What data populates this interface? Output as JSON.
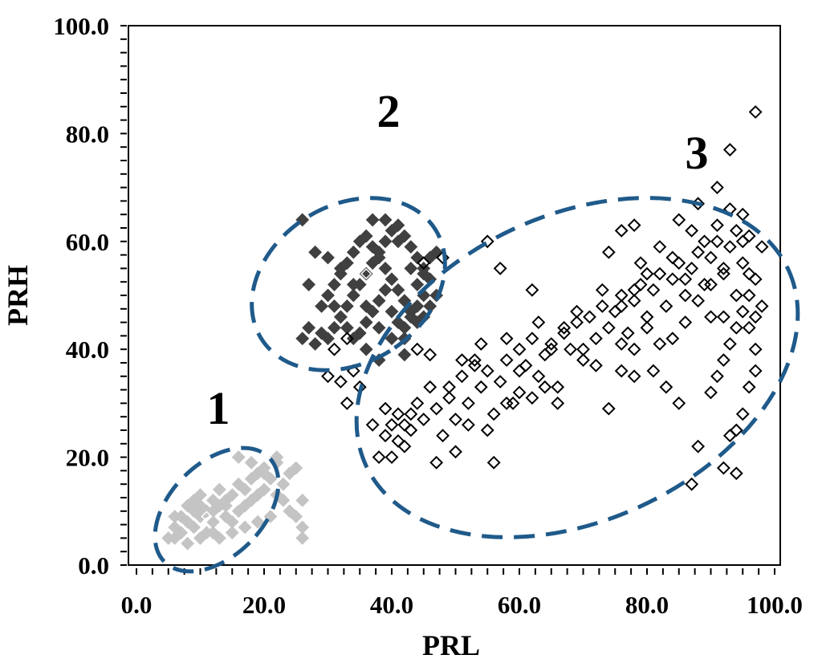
{
  "chart_data": {
    "type": "scatter",
    "title": "",
    "xlabel": "PRL",
    "ylabel": "PRH",
    "xlim": [
      0,
      100
    ],
    "ylim": [
      0,
      100
    ],
    "x_ticks": [
      "0.0",
      "20.0",
      "40.0",
      "60.0",
      "80.0",
      "100.0"
    ],
    "y_ticks": [
      "0.0",
      "20.0",
      "40.0",
      "60.0",
      "80.0",
      "100.0"
    ],
    "grid": false,
    "legend": "none",
    "marker": "diamond",
    "clusters": [
      {
        "label": "1",
        "color": "#c4c4c4",
        "centroid": [
          11,
          9
        ],
        "points": [
          [
            5,
            5
          ],
          [
            6,
            7
          ],
          [
            7,
            9
          ],
          [
            8,
            11
          ],
          [
            9,
            12
          ],
          [
            10,
            13
          ],
          [
            11,
            10
          ],
          [
            12,
            12
          ],
          [
            13,
            14
          ],
          [
            14,
            11
          ],
          [
            15,
            13
          ],
          [
            16,
            15
          ],
          [
            17,
            14
          ],
          [
            18,
            16
          ],
          [
            19,
            17
          ],
          [
            20,
            18
          ],
          [
            21,
            16
          ],
          [
            22,
            19
          ],
          [
            23,
            15
          ],
          [
            24,
            17
          ],
          [
            25,
            18
          ],
          [
            26,
            12
          ],
          [
            24,
            10
          ],
          [
            21,
            9
          ],
          [
            19,
            8
          ],
          [
            17,
            7
          ],
          [
            15,
            6
          ],
          [
            13,
            5
          ],
          [
            11,
            6
          ],
          [
            9,
            7
          ],
          [
            7,
            6
          ],
          [
            6,
            5
          ],
          [
            8,
            4
          ],
          [
            10,
            5
          ],
          [
            12,
            8
          ],
          [
            14,
            9
          ],
          [
            16,
            10
          ],
          [
            18,
            12
          ],
          [
            20,
            14
          ],
          [
            22,
            13
          ],
          [
            23,
            12
          ],
          [
            25,
            9
          ],
          [
            26,
            7
          ],
          [
            26,
            5
          ],
          [
            16,
            20
          ],
          [
            18,
            19
          ],
          [
            20,
            17
          ],
          [
            22,
            20
          ],
          [
            8,
            8
          ],
          [
            10,
            9
          ],
          [
            12,
            10
          ],
          [
            14,
            12
          ],
          [
            10,
            11
          ],
          [
            12,
            6
          ],
          [
            6,
            9
          ],
          [
            9,
            10
          ],
          [
            15,
            8
          ],
          [
            17,
            11
          ],
          [
            19,
            13
          ],
          [
            13,
            11
          ]
        ]
      },
      {
        "label": "2",
        "color": "#404040",
        "centroid": [
          36,
          54
        ],
        "points": [
          [
            26,
            42
          ],
          [
            27,
            44
          ],
          [
            28,
            41
          ],
          [
            29,
            43
          ],
          [
            30,
            42
          ],
          [
            31,
            44
          ],
          [
            32,
            46
          ],
          [
            33,
            48
          ],
          [
            34,
            50
          ],
          [
            35,
            52
          ],
          [
            36,
            54
          ],
          [
            37,
            56
          ],
          [
            38,
            58
          ],
          [
            39,
            60
          ],
          [
            40,
            62
          ],
          [
            41,
            63
          ],
          [
            42,
            61
          ],
          [
            43,
            59
          ],
          [
            44,
            57
          ],
          [
            45,
            55
          ],
          [
            46,
            53
          ],
          [
            45,
            50
          ],
          [
            44,
            48
          ],
          [
            43,
            47
          ],
          [
            42,
            49
          ],
          [
            41,
            51
          ],
          [
            40,
            53
          ],
          [
            39,
            55
          ],
          [
            38,
            57
          ],
          [
            37,
            59
          ],
          [
            36,
            61
          ],
          [
            35,
            60
          ],
          [
            34,
            58
          ],
          [
            33,
            56
          ],
          [
            32,
            54
          ],
          [
            31,
            52
          ],
          [
            30,
            50
          ],
          [
            31,
            48
          ],
          [
            32,
            46
          ],
          [
            33,
            44
          ],
          [
            34,
            42
          ],
          [
            35,
            43
          ],
          [
            36,
            45
          ],
          [
            37,
            47
          ],
          [
            38,
            49
          ],
          [
            39,
            51
          ],
          [
            40,
            47
          ],
          [
            41,
            45
          ],
          [
            42,
            44
          ],
          [
            43,
            46
          ],
          [
            44,
            52
          ],
          [
            45,
            54
          ],
          [
            46,
            57
          ],
          [
            47,
            58
          ],
          [
            47,
            50
          ],
          [
            46,
            48
          ],
          [
            44,
            45
          ],
          [
            42,
            42
          ],
          [
            40,
            42
          ],
          [
            38,
            44
          ],
          [
            36,
            48
          ],
          [
            34,
            52
          ],
          [
            32,
            55
          ],
          [
            30,
            57
          ],
          [
            28,
            58
          ],
          [
            27,
            52
          ],
          [
            29,
            48
          ],
          [
            26,
            64
          ],
          [
            37,
            64
          ],
          [
            39,
            64
          ],
          [
            41,
            60
          ],
          [
            43,
            55
          ],
          [
            45,
            46
          ],
          [
            42,
            39
          ],
          [
            38,
            38
          ],
          [
            36,
            40
          ]
        ]
      },
      {
        "label": "3",
        "color": "#000000",
        "centroid": null,
        "points": [
          [
            38,
            20
          ],
          [
            39,
            24
          ],
          [
            40,
            26
          ],
          [
            41,
            28
          ],
          [
            42,
            22
          ],
          [
            43,
            25
          ],
          [
            44,
            30
          ],
          [
            45,
            27
          ],
          [
            46,
            33
          ],
          [
            47,
            29
          ],
          [
            48,
            24
          ],
          [
            49,
            31
          ],
          [
            50,
            27
          ],
          [
            51,
            35
          ],
          [
            52,
            30
          ],
          [
            53,
            37
          ],
          [
            54,
            33
          ],
          [
            55,
            36
          ],
          [
            56,
            28
          ],
          [
            57,
            34
          ],
          [
            58,
            38
          ],
          [
            59,
            30
          ],
          [
            60,
            40
          ],
          [
            61,
            37
          ],
          [
            62,
            42
          ],
          [
            63,
            35
          ],
          [
            64,
            39
          ],
          [
            65,
            41
          ],
          [
            66,
            33
          ],
          [
            67,
            43
          ],
          [
            68,
            40
          ],
          [
            69,
            45
          ],
          [
            70,
            38
          ],
          [
            71,
            46
          ],
          [
            72,
            42
          ],
          [
            73,
            48
          ],
          [
            74,
            44
          ],
          [
            75,
            47
          ],
          [
            76,
            50
          ],
          [
            77,
            43
          ],
          [
            78,
            49
          ],
          [
            79,
            52
          ],
          [
            80,
            46
          ],
          [
            81,
            51
          ],
          [
            82,
            54
          ],
          [
            83,
            48
          ],
          [
            84,
            53
          ],
          [
            85,
            56
          ],
          [
            86,
            50
          ],
          [
            87,
            55
          ],
          [
            88,
            58
          ],
          [
            89,
            52
          ],
          [
            90,
            57
          ],
          [
            91,
            60
          ],
          [
            92,
            54
          ],
          [
            93,
            59
          ],
          [
            94,
            62
          ],
          [
            95,
            56
          ],
          [
            96,
            61
          ],
          [
            97,
            53
          ],
          [
            96,
            50
          ],
          [
            95,
            47
          ],
          [
            94,
            44
          ],
          [
            93,
            41
          ],
          [
            92,
            38
          ],
          [
            91,
            35
          ],
          [
            90,
            32
          ],
          [
            96,
            44
          ],
          [
            97,
            40
          ],
          [
            97,
            36
          ],
          [
            96,
            33
          ],
          [
            95,
            28
          ],
          [
            94,
            25
          ],
          [
            93,
            24
          ],
          [
            92,
            18
          ],
          [
            94,
            17
          ],
          [
            88,
            22
          ],
          [
            87,
            15
          ],
          [
            85,
            30
          ],
          [
            83,
            33
          ],
          [
            81,
            36
          ],
          [
            78,
            35
          ],
          [
            76,
            36
          ],
          [
            74,
            29
          ],
          [
            72,
            37
          ],
          [
            70,
            40
          ],
          [
            66,
            30
          ],
          [
            63,
            45
          ],
          [
            60,
            36
          ],
          [
            58,
            42
          ],
          [
            56,
            19
          ],
          [
            55,
            25
          ],
          [
            52,
            26
          ],
          [
            50,
            21
          ],
          [
            47,
            19
          ],
          [
            46,
            39
          ],
          [
            44,
            40
          ],
          [
            45,
            56
          ],
          [
            48,
            57
          ],
          [
            55,
            60
          ],
          [
            57,
            55
          ],
          [
            62,
            51
          ],
          [
            73,
            51
          ],
          [
            76,
            62
          ],
          [
            78,
            63
          ],
          [
            79,
            56
          ],
          [
            74,
            58
          ],
          [
            88,
            67
          ],
          [
            91,
            70
          ],
          [
            93,
            77
          ],
          [
            97,
            84
          ],
          [
            95,
            65
          ],
          [
            98,
            59
          ],
          [
            98,
            48
          ],
          [
            97,
            46
          ],
          [
            90,
            46
          ],
          [
            86,
            45
          ],
          [
            84,
            42
          ],
          [
            82,
            41
          ],
          [
            80,
            44
          ],
          [
            78,
            40
          ],
          [
            76,
            41
          ],
          [
            69,
            47
          ],
          [
            67,
            44
          ],
          [
            65,
            40
          ],
          [
            64,
            33
          ],
          [
            62,
            31
          ],
          [
            60,
            32
          ],
          [
            58,
            30
          ],
          [
            54,
            41
          ],
          [
            53,
            38
          ],
          [
            51,
            38
          ],
          [
            49,
            33
          ],
          [
            43,
            28
          ],
          [
            42,
            26
          ],
          [
            41,
            23
          ],
          [
            40,
            20
          ],
          [
            39,
            29
          ],
          [
            37,
            26
          ],
          [
            35,
            33
          ],
          [
            33,
            30
          ],
          [
            32,
            34
          ],
          [
            30,
            35
          ],
          [
            34,
            36
          ],
          [
            31,
            40
          ],
          [
            33,
            42
          ],
          [
            85,
            64
          ],
          [
            87,
            62
          ],
          [
            89,
            60
          ],
          [
            91,
            63
          ],
          [
            93,
            66
          ],
          [
            95,
            60
          ],
          [
            92,
            55
          ],
          [
            90,
            52
          ],
          [
            88,
            49
          ],
          [
            86,
            53
          ],
          [
            84,
            57
          ],
          [
            82,
            59
          ],
          [
            80,
            54
          ],
          [
            78,
            51
          ],
          [
            76,
            48
          ],
          [
            92,
            46
          ],
          [
            94,
            50
          ],
          [
            96,
            54
          ]
        ]
      }
    ]
  }
}
